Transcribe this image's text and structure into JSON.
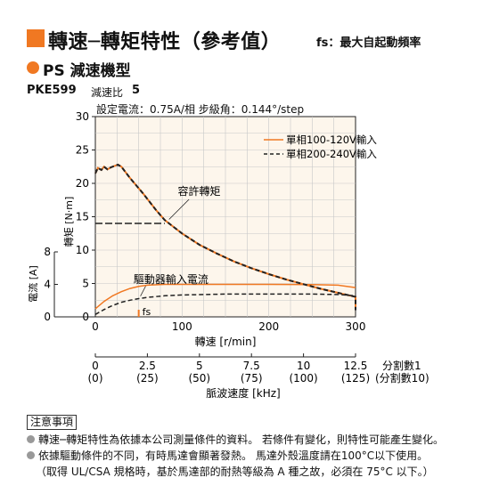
{
  "header": {
    "title": "轉速─轉矩特性（參考值）",
    "title_note": "fs：最大自起動頻率",
    "accent": "#f07822"
  },
  "series_header": {
    "label": "PS 減速機型"
  },
  "model": {
    "name": "PKE599",
    "gear_ratio_label": "減速比",
    "gear_ratio": "5"
  },
  "conditions": "設定電流：0.75A/相  步級角：0.144°/step",
  "chart_data": {
    "type": "line",
    "xlabel": "轉速 [r/min]",
    "xlim": [
      0,
      300
    ],
    "xticks": [
      0,
      100,
      200,
      300
    ],
    "torque_axis": {
      "label": "轉矩 [N·m]",
      "ylim": [
        0,
        30
      ],
      "ticks": [
        0,
        5,
        10,
        15,
        20,
        25,
        30
      ]
    },
    "current_axis": {
      "label": "電流 [A]",
      "ylim": [
        0,
        8
      ],
      "ticks": [
        0,
        4,
        8
      ]
    },
    "grid": true,
    "legend": "top-right",
    "series": [
      {
        "name": "單相100-120V輸入",
        "color": "#f07822",
        "dash": "solid",
        "torque": [
          [
            0,
            21.5
          ],
          [
            3,
            22.3
          ],
          [
            7,
            22.0
          ],
          [
            10,
            22.5
          ],
          [
            14,
            22.1
          ],
          [
            18,
            22.4
          ],
          [
            22,
            22.6
          ],
          [
            26,
            22.8
          ],
          [
            30,
            22.5
          ],
          [
            40,
            20.8
          ],
          [
            55,
            18.5
          ],
          [
            70,
            16.0
          ],
          [
            80,
            14.5
          ],
          [
            100,
            12.5
          ],
          [
            120,
            10.8
          ],
          [
            140,
            9.5
          ],
          [
            160,
            8.3
          ],
          [
            180,
            7.3
          ],
          [
            200,
            6.4
          ],
          [
            220,
            5.6
          ],
          [
            240,
            4.9
          ],
          [
            260,
            4.2
          ],
          [
            280,
            3.6
          ],
          [
            300,
            3.0
          ],
          [
            300,
            1.0
          ]
        ],
        "current": [
          [
            0,
            1.0
          ],
          [
            10,
            1.9
          ],
          [
            20,
            2.6
          ],
          [
            30,
            3.1
          ],
          [
            40,
            3.5
          ],
          [
            50,
            3.75
          ],
          [
            60,
            3.9
          ],
          [
            80,
            4.0
          ],
          [
            100,
            4.0
          ],
          [
            150,
            4.0
          ],
          [
            200,
            4.0
          ],
          [
            250,
            3.98
          ],
          [
            280,
            3.9
          ],
          [
            300,
            3.6
          ]
        ]
      },
      {
        "name": "單相200-240V輸入",
        "color": "#222222",
        "dash": "dashed",
        "torque": [
          [
            0,
            21.5
          ],
          [
            3,
            22.3
          ],
          [
            7,
            22.0
          ],
          [
            10,
            22.5
          ],
          [
            14,
            22.1
          ],
          [
            18,
            22.4
          ],
          [
            22,
            22.6
          ],
          [
            26,
            22.8
          ],
          [
            30,
            22.5
          ],
          [
            40,
            20.8
          ],
          [
            55,
            18.5
          ],
          [
            70,
            16.0
          ],
          [
            80,
            14.5
          ],
          [
            100,
            12.5
          ],
          [
            120,
            10.8
          ],
          [
            140,
            9.5
          ],
          [
            160,
            8.3
          ],
          [
            180,
            7.3
          ],
          [
            200,
            6.4
          ],
          [
            220,
            5.6
          ],
          [
            240,
            4.9
          ],
          [
            260,
            4.2
          ],
          [
            280,
            3.6
          ],
          [
            300,
            3.0
          ],
          [
            300,
            1.0
          ]
        ],
        "current": [
          [
            0,
            0.3
          ],
          [
            10,
            0.9
          ],
          [
            20,
            1.4
          ],
          [
            30,
            1.8
          ],
          [
            40,
            2.05
          ],
          [
            50,
            2.25
          ],
          [
            60,
            2.4
          ],
          [
            80,
            2.6
          ],
          [
            100,
            2.7
          ],
          [
            150,
            2.8
          ],
          [
            200,
            2.8
          ],
          [
            250,
            2.8
          ],
          [
            280,
            2.75
          ],
          [
            300,
            2.6
          ]
        ]
      }
    ],
    "holding_torque": {
      "label": "容許轉矩",
      "value": 14,
      "x_end": 80
    },
    "current_label": "驅動器輸入電流",
    "fs": {
      "label": "fs",
      "x": 50
    },
    "pulse_axis": {
      "label": "脈波速度 [kHz]",
      "values": [
        "0",
        "2.5",
        "5",
        "7.5",
        "10",
        "12.5"
      ],
      "subvalues": [
        "(0)",
        "(25)",
        "(50)",
        "(75)",
        "(100)",
        "(125)"
      ],
      "div1_label": "分割數1",
      "div10_label": "(分割數10)"
    }
  },
  "notes": {
    "heading": "注意事項",
    "items": [
      "轉速─轉矩特性為依據本公司測量條件的資料。 若條件有變化，則特性可能產生變化。",
      "依據驅動條件的不同，有時馬達會顯著發熱。 馬達外殼溫度請在100°C以下使用。"
    ],
    "continuation": "（取得 UL/CSA 規格時，基於馬達部的耐熱等級為 A 種之故，必須在 75°C 以下。）"
  }
}
